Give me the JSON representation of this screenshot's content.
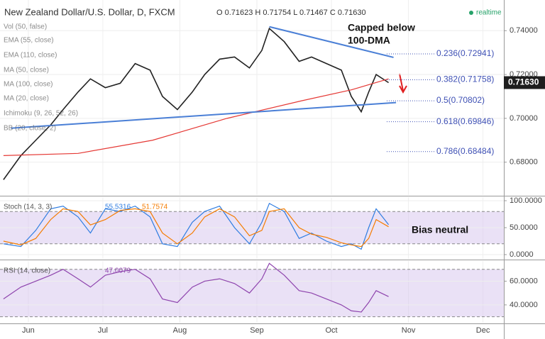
{
  "chart_data": [
    {
      "type": "line",
      "title": "New Zealand Dollar/U.S. Dollar, D, FXCM",
      "subtitle": "O 0.71623 H 0.71754 L 0.71467 C 0.71630",
      "status": "realtime",
      "indicators": [
        "Vol (50, false)",
        "EMA (55, close)",
        "EMA (110, close)",
        "MA (50, close)",
        "MA (20, close)",
        "Ichimoku (9, 26, 52, 26)",
        "BB (20, close, 2)"
      ],
      "annotations": [
        "Capped below",
        "100-DMA"
      ],
      "x": [
        -10,
        -3,
        3,
        9,
        14,
        20,
        25,
        31,
        37,
        43,
        49,
        54,
        60,
        66,
        71,
        77,
        83,
        89,
        94,
        97,
        103,
        109,
        114,
        120,
        126,
        130,
        134,
        137,
        140,
        145
      ],
      "series": [
        {
          "color": "#222222",
          "values": [
            0.672,
            0.683,
            0.69,
            0.697,
            0.704,
            0.712,
            0.718,
            0.714,
            0.716,
            0.725,
            0.722,
            0.71,
            0.704,
            0.712,
            0.72,
            0.727,
            0.728,
            0.723,
            0.731,
            0.741,
            0.735,
            0.726,
            0.728,
            0.725,
            0.722,
            0.71,
            0.703,
            0.712,
            0.72,
            0.7163
          ]
        },
        {
          "name": "MA (100, close)",
          "color": "#e53935",
          "x": [
            -10,
            20,
            50,
            80,
            110,
            130,
            145
          ],
          "values": [
            0.683,
            0.684,
            0.69,
            0.7,
            0.708,
            0.713,
            0.718
          ]
        }
      ],
      "trendlines": [
        {
          "color": "#4a7fd6",
          "x": [
            97,
            147
          ],
          "values": [
            0.7418,
            0.7278
          ]
        },
        {
          "color": "#4a7fd6",
          "x": [
            -7,
            148
          ],
          "values": [
            0.6955,
            0.7072
          ]
        }
      ],
      "levels": [
        {
          "value": 0.72941,
          "label": "0.236(0.72941)"
        },
        {
          "value": 0.71758,
          "label": "0.382(0.71758)"
        },
        {
          "value": 0.70802,
          "label": "0.5(0.70802)"
        },
        {
          "value": 0.69846,
          "label": "0.618(0.69846)"
        },
        {
          "value": 0.68484,
          "label": "0.786(0.68484)"
        }
      ],
      "last": {
        "value": 0.7163,
        "label": "0.71630"
      },
      "xlim": [
        -11.4,
        191.4
      ],
      "xticks": [
        {
          "value": 0,
          "label": "Jun"
        },
        {
          "value": 30,
          "label": "Jul"
        },
        {
          "value": 61,
          "label": "Aug"
        },
        {
          "value": 92,
          "label": "Sep"
        },
        {
          "value": 122,
          "label": "Oct"
        },
        {
          "value": 153,
          "label": "Nov"
        },
        {
          "value": 183,
          "label": "Dec"
        }
      ],
      "ylim": [
        0.665,
        0.754
      ],
      "yticks": [
        {
          "value": 0.68,
          "label": "0.68000"
        },
        {
          "value": 0.7,
          "label": "0.70000"
        },
        {
          "value": 0.72,
          "label": "0.72000"
        },
        {
          "value": 0.74,
          "label": "0.74000"
        }
      ],
      "grid": true
    },
    {
      "type": "line",
      "title": "Stoch (14, 3, 3)",
      "annotations": [
        "Bias neutral"
      ],
      "x": [
        -10,
        -3,
        3,
        9,
        14,
        20,
        25,
        31,
        37,
        43,
        49,
        54,
        60,
        66,
        71,
        77,
        83,
        89,
        94,
        97,
        103,
        109,
        114,
        120,
        126,
        130,
        134,
        137,
        140,
        145
      ],
      "series": [
        {
          "name": "55.5316",
          "color": "#2f7de1",
          "values": [
            20,
            15,
            45,
            85,
            90,
            70,
            40,
            85,
            80,
            90,
            70,
            20,
            15,
            60,
            80,
            90,
            50,
            20,
            60,
            95,
            80,
            30,
            40,
            25,
            15,
            20,
            10,
            50,
            85,
            55.5316
          ]
        },
        {
          "name": "51.7574",
          "color": "#f57c00",
          "values": [
            25,
            18,
            30,
            65,
            85,
            80,
            55,
            65,
            82,
            85,
            80,
            40,
            20,
            40,
            70,
            85,
            70,
            35,
            45,
            80,
            85,
            50,
            38,
            32,
            22,
            18,
            15,
            30,
            65,
            51.7574
          ]
        }
      ],
      "bands": [
        20,
        80
      ],
      "xlim": [
        -11.4,
        191.4
      ],
      "ylim": [
        -7.9,
        106.6
      ],
      "yticks": [
        {
          "value": 0,
          "label": "0.0000"
        },
        {
          "value": 50,
          "label": "50.0000"
        },
        {
          "value": 100,
          "label": "100.0000"
        }
      ]
    },
    {
      "type": "line",
      "title": "RSI (14, close)",
      "x": [
        -10,
        -3,
        3,
        9,
        14,
        20,
        25,
        31,
        37,
        43,
        49,
        54,
        60,
        66,
        71,
        77,
        83,
        89,
        94,
        97,
        103,
        109,
        114,
        120,
        126,
        130,
        134,
        137,
        140,
        145
      ],
      "series": [
        {
          "name": "47.0079",
          "color": "#8e44ad",
          "values": [
            45,
            55,
            60,
            65,
            70,
            62,
            55,
            65,
            68,
            70,
            62,
            45,
            42,
            55,
            60,
            62,
            58,
            50,
            62,
            75,
            65,
            52,
            50,
            45,
            40,
            35,
            34,
            42,
            52,
            47.0079
          ]
        }
      ],
      "bands": [
        30,
        70
      ],
      "xlim": [
        -11.4,
        191.4
      ],
      "ylim": [
        25,
        77
      ],
      "yticks": [
        {
          "value": 40,
          "label": "40.0000"
        },
        {
          "value": 60,
          "label": "60.0000"
        }
      ]
    }
  ]
}
